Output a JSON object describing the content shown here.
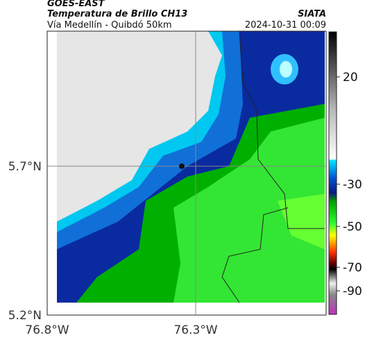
{
  "header": {
    "title": "GOES-EAST",
    "subtitle": "Temperatura de Brillo CH13",
    "source": "SIATA",
    "location": "Vía Medellín - Quibdó 50km",
    "datetime": "2024-10-31 00:09"
  },
  "axes": {
    "lat_labels": [
      "5.7°N",
      "5.2°N"
    ],
    "lon_labels": [
      "76.8°W",
      "76.3°W"
    ]
  },
  "colorbar": {
    "ticks": [
      "20",
      "-30",
      "-50",
      "-70",
      "-90"
    ]
  }
}
